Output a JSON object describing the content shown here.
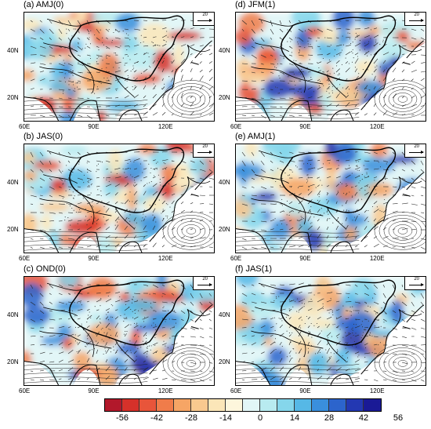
{
  "panels": [
    {
      "title": "(a) AMJ(0)",
      "ref_vector": "20",
      "lat_labels": [
        "40N",
        "20N"
      ],
      "lon_labels": [
        "60E",
        "90E",
        "120E"
      ]
    },
    {
      "title": "(d) JFM(1)",
      "ref_vector": "20",
      "lat_labels": [
        "40N",
        "20N"
      ],
      "lon_labels": [
        "60E",
        "90E",
        "120E"
      ]
    },
    {
      "title": "(b) JAS(0)",
      "ref_vector": "20",
      "lat_labels": [
        "40N",
        "20N"
      ],
      "lon_labels": [
        "60E",
        "90E",
        "120E"
      ]
    },
    {
      "title": "(e) AMJ(1)",
      "ref_vector": "20",
      "lat_labels": [
        "40N",
        "20N"
      ],
      "lon_labels": [
        "60E",
        "90E",
        "120E"
      ]
    },
    {
      "title": "(c) OND(0)",
      "ref_vector": "20",
      "lat_labels": [
        "40N",
        "20N"
      ],
      "lon_labels": [
        "60E",
        "90E",
        "120E"
      ]
    },
    {
      "title": "(f) JAS(1)",
      "ref_vector": "20",
      "lat_labels": [
        "40N",
        "20N"
      ],
      "lon_labels": [
        "60E",
        "90E",
        "120E"
      ]
    }
  ],
  "colorbar": {
    "labels": [
      "-56",
      "-42",
      "-28",
      "-14",
      "0",
      "14",
      "28",
      "42",
      "56"
    ],
    "colors": [
      "#b2182b",
      "#d6312a",
      "#e8553a",
      "#f07c4a",
      "#f6a565",
      "#f9c98f",
      "#fbe6b8",
      "#fdf6dc",
      "#e2f6f7",
      "#b8ebf0",
      "#85d6eb",
      "#56b8e6",
      "#3a8fdc",
      "#2c64cc",
      "#2338b2",
      "#1a1a96"
    ]
  }
}
